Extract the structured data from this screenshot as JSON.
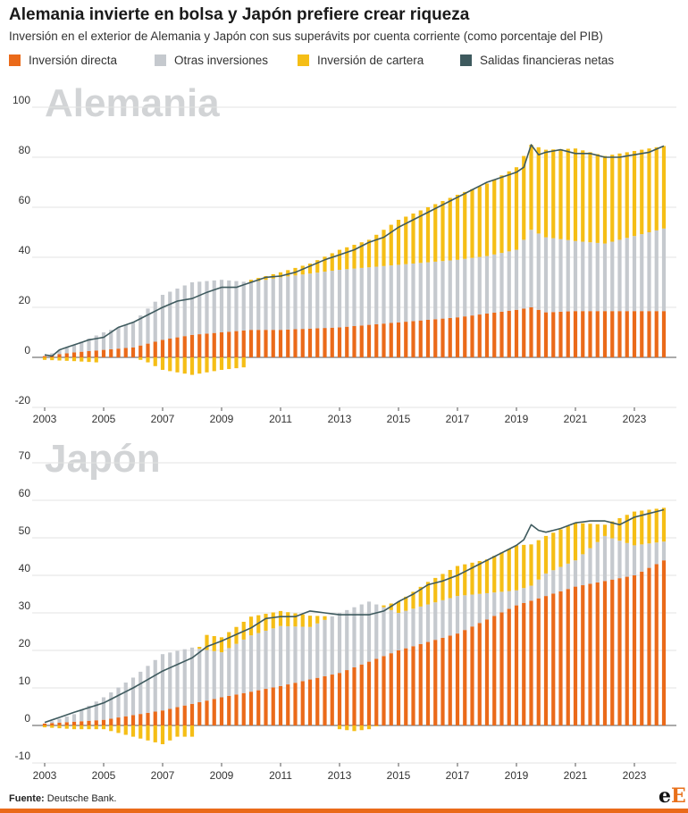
{
  "title": "Alemania invierte en bolsa y Japón prefiere crear riqueza",
  "subtitle": "Inversión en el exterior de Alemania y Japón con sus superávits por cuenta corriente (como porcentaje del PIB)",
  "legend": [
    {
      "label": "Inversión directa",
      "color": "#ea6a1a"
    },
    {
      "label": "Otras inversiones",
      "color": "#c5c9ce"
    },
    {
      "label": "Inversión de cartera",
      "color": "#f5be16"
    },
    {
      "label": "Salidas financieras netas",
      "color": "#3e5a5e"
    }
  ],
  "source_label": "Fuente:",
  "source_text": " Deutsche Bank.",
  "logo": {
    "part1": "e",
    "part2": "E"
  },
  "chart_data": [
    {
      "type": "bar",
      "stacked": true,
      "panel_title": "Alemania",
      "x_start": 2003.0,
      "x_step": 0.25,
      "n": 85,
      "xticks": [
        2003,
        2005,
        2007,
        2009,
        2011,
        2013,
        2015,
        2017,
        2019,
        2021,
        2023
      ],
      "yticks": [
        -20,
        0,
        20,
        40,
        60,
        80,
        100
      ],
      "ylim": [
        -20,
        100
      ],
      "grid": true,
      "series": [
        {
          "name": "Inversión directa",
          "key": "directa",
          "color": "#ea6a1a",
          "keypoints": [
            [
              2003.0,
              0.5
            ],
            [
              2004.0,
              2
            ],
            [
              2005.0,
              3
            ],
            [
              2006.0,
              4
            ],
            [
              2007.0,
              7
            ],
            [
              2008.0,
              9
            ],
            [
              2009.0,
              10
            ],
            [
              2010.0,
              11
            ],
            [
              2011.0,
              11
            ],
            [
              2012.0,
              11.5
            ],
            [
              2013.0,
              12
            ],
            [
              2014.0,
              13
            ],
            [
              2015.0,
              14
            ],
            [
              2016.0,
              15
            ],
            [
              2017.0,
              16
            ],
            [
              2018.0,
              17.5
            ],
            [
              2019.0,
              19
            ],
            [
              2019.5,
              20
            ],
            [
              2020.0,
              18
            ],
            [
              2021.0,
              18.5
            ],
            [
              2022.0,
              18.5
            ],
            [
              2024.0,
              18.5
            ]
          ]
        },
        {
          "name": "Otras inversiones",
          "key": "otras",
          "color": "#c5c9ce",
          "keypoints": [
            [
              2003.0,
              0
            ],
            [
              2004.0,
              3
            ],
            [
              2005.0,
              7
            ],
            [
              2006.0,
              10
            ],
            [
              2007.0,
              18
            ],
            [
              2008.0,
              21
            ],
            [
              2009.0,
              21
            ],
            [
              2010.0,
              19
            ],
            [
              2011.0,
              21
            ],
            [
              2012.0,
              22
            ],
            [
              2013.0,
              23
            ],
            [
              2014.0,
              23
            ],
            [
              2015.0,
              23
            ],
            [
              2016.0,
              23
            ],
            [
              2017.0,
              23
            ],
            [
              2018.0,
              23
            ],
            [
              2019.0,
              24
            ],
            [
              2019.5,
              31
            ],
            [
              2020.0,
              30
            ],
            [
              2021.0,
              28
            ],
            [
              2022.0,
              27
            ],
            [
              2023.0,
              30
            ],
            [
              2024.0,
              33
            ]
          ]
        },
        {
          "name": "Inversión de cartera",
          "key": "cartera",
          "color": "#f5be16",
          "keypoints": [
            [
              2003.0,
              -1
            ],
            [
              2004.0,
              -1.5
            ],
            [
              2004.75,
              -2
            ],
            [
              2005.0,
              0
            ],
            [
              2006.0,
              0
            ],
            [
              2006.5,
              -2
            ],
            [
              2007.0,
              -5
            ],
            [
              2008.0,
              -7
            ],
            [
              2009.0,
              -5
            ],
            [
              2009.75,
              -4
            ],
            [
              2010.0,
              1
            ],
            [
              2011.0,
              2
            ],
            [
              2012.0,
              4
            ],
            [
              2013.0,
              8
            ],
            [
              2014.0,
              11
            ],
            [
              2015.0,
              18
            ],
            [
              2016.0,
              22
            ],
            [
              2017.0,
              26
            ],
            [
              2018.0,
              29
            ],
            [
              2019.0,
              33
            ],
            [
              2019.5,
              34
            ],
            [
              2020.0,
              35
            ],
            [
              2021.0,
              37
            ],
            [
              2022.0,
              35
            ],
            [
              2023.0,
              34
            ],
            [
              2024.0,
              33
            ]
          ]
        },
        {
          "name": "Salidas financieras netas",
          "key": "netas",
          "color": "#3e5a5e",
          "type": "line",
          "keypoints": [
            [
              2003.0,
              1
            ],
            [
              2003.25,
              0.5
            ],
            [
              2003.5,
              3
            ],
            [
              2004.0,
              5
            ],
            [
              2004.5,
              7
            ],
            [
              2005.0,
              8
            ],
            [
              2005.5,
              12
            ],
            [
              2006.0,
              14
            ],
            [
              2006.5,
              17
            ],
            [
              2007.0,
              20
            ],
            [
              2007.5,
              22.5
            ],
            [
              2008.0,
              23.5
            ],
            [
              2008.5,
              26
            ],
            [
              2009.0,
              28
            ],
            [
              2009.5,
              28
            ],
            [
              2009.75,
              29
            ],
            [
              2010.0,
              30
            ],
            [
              2010.5,
              32
            ],
            [
              2011.0,
              32.5
            ],
            [
              2011.5,
              34
            ],
            [
              2012.0,
              36.5
            ],
            [
              2012.5,
              39
            ],
            [
              2013.0,
              41
            ],
            [
              2013.5,
              43
            ],
            [
              2014.0,
              46
            ],
            [
              2014.5,
              48
            ],
            [
              2015.0,
              52
            ],
            [
              2015.5,
              55
            ],
            [
              2016.0,
              58
            ],
            [
              2016.5,
              61
            ],
            [
              2017.0,
              64
            ],
            [
              2017.5,
              67
            ],
            [
              2018.0,
              70
            ],
            [
              2018.5,
              72
            ],
            [
              2019.0,
              74
            ],
            [
              2019.25,
              76
            ],
            [
              2019.5,
              85
            ],
            [
              2019.75,
              81
            ],
            [
              2020.0,
              82
            ],
            [
              2020.5,
              83
            ],
            [
              2021.0,
              81.5
            ],
            [
              2021.5,
              81.5
            ],
            [
              2022.0,
              80
            ],
            [
              2022.5,
              80
            ],
            [
              2023.0,
              81
            ],
            [
              2023.5,
              82
            ],
            [
              2024.0,
              84.5
            ]
          ]
        }
      ]
    },
    {
      "type": "bar",
      "stacked": true,
      "panel_title": "Japón",
      "x_start": 2003.0,
      "x_step": 0.25,
      "n": 85,
      "xticks": [
        2003,
        2005,
        2007,
        2009,
        2011,
        2013,
        2015,
        2017,
        2019,
        2021,
        2023
      ],
      "yticks": [
        -10,
        0,
        10,
        20,
        30,
        40,
        50,
        60,
        70
      ],
      "ylim": [
        -10,
        70
      ],
      "grid": true,
      "series": [
        {
          "name": "Inversión directa",
          "key": "directa",
          "color": "#ea6a1a",
          "keypoints": [
            [
              2003.0,
              0.5
            ],
            [
              2005.0,
              1.5
            ],
            [
              2007.0,
              4
            ],
            [
              2009.0,
              7.5
            ],
            [
              2011.0,
              10.5
            ],
            [
              2013.0,
              14
            ],
            [
              2015.0,
              20
            ],
            [
              2017.0,
              24.5
            ],
            [
              2019.0,
              32
            ],
            [
              2021.0,
              37
            ],
            [
              2023.0,
              40
            ],
            [
              2024.0,
              44
            ]
          ]
        },
        {
          "name": "Otras inversiones",
          "key": "otras",
          "color": "#c5c9ce",
          "keypoints": [
            [
              2003.0,
              0
            ],
            [
              2004.0,
              2
            ],
            [
              2005.0,
              6
            ],
            [
              2006.0,
              10
            ],
            [
              2007.0,
              15
            ],
            [
              2008.0,
              15
            ],
            [
              2009.0,
              12
            ],
            [
              2010.0,
              15
            ],
            [
              2011.0,
              16
            ],
            [
              2012.0,
              14
            ],
            [
              2013.0,
              16
            ],
            [
              2014.0,
              16
            ],
            [
              2015.0,
              10
            ],
            [
              2016.0,
              10
            ],
            [
              2017.0,
              10
            ],
            [
              2018.0,
              7
            ],
            [
              2019.0,
              4
            ],
            [
              2019.5,
              4
            ],
            [
              2020.0,
              6
            ],
            [
              2021.0,
              7
            ],
            [
              2022.0,
              12
            ],
            [
              2023.0,
              8
            ],
            [
              2024.0,
              5
            ]
          ]
        },
        {
          "name": "Inversión de cartera",
          "key": "cartera",
          "color": "#f5be16",
          "keypoints": [
            [
              2003.0,
              -0.5
            ],
            [
              2004.0,
              -1
            ],
            [
              2005.0,
              -1
            ],
            [
              2005.5,
              -2
            ],
            [
              2006.0,
              -3
            ],
            [
              2006.5,
              -4
            ],
            [
              2007.0,
              -5
            ],
            [
              2007.5,
              -3
            ],
            [
              2008.0,
              -3
            ],
            [
              2008.5,
              4
            ],
            [
              2009.0,
              4
            ],
            [
              2010.0,
              5
            ],
            [
              2011.0,
              4
            ],
            [
              2012.0,
              3
            ],
            [
              2012.5,
              1
            ],
            [
              2013.0,
              -1
            ],
            [
              2013.5,
              -1.5
            ],
            [
              2014.0,
              -1
            ],
            [
              2014.5,
              0.5
            ],
            [
              2015.0,
              3
            ],
            [
              2016.0,
              6
            ],
            [
              2017.0,
              8
            ],
            [
              2018.0,
              9
            ],
            [
              2019.0,
              12
            ],
            [
              2020.0,
              10
            ],
            [
              2021.0,
              10
            ],
            [
              2022.0,
              3
            ],
            [
              2023.0,
              9
            ],
            [
              2024.0,
              9
            ]
          ]
        },
        {
          "name": "Salidas financieras netas",
          "key": "netas",
          "color": "#3e5a5e",
          "type": "line",
          "keypoints": [
            [
              2003.0,
              0.8
            ],
            [
              2004.0,
              3.5
            ],
            [
              2005.0,
              6
            ],
            [
              2006.0,
              10
            ],
            [
              2007.0,
              14.5
            ],
            [
              2008.0,
              18
            ],
            [
              2008.5,
              21
            ],
            [
              2009.0,
              22.5
            ],
            [
              2010.0,
              26
            ],
            [
              2010.5,
              28.5
            ],
            [
              2011.0,
              29
            ],
            [
              2011.5,
              29
            ],
            [
              2012.0,
              30.5
            ],
            [
              2012.5,
              30
            ],
            [
              2013.0,
              29.5
            ],
            [
              2013.5,
              29.5
            ],
            [
              2014.0,
              29.5
            ],
            [
              2014.5,
              30.5
            ],
            [
              2015.0,
              33
            ],
            [
              2015.5,
              35
            ],
            [
              2016.0,
              37.5
            ],
            [
              2016.5,
              38.5
            ],
            [
              2017.0,
              40
            ],
            [
              2017.5,
              42
            ],
            [
              2018.0,
              44
            ],
            [
              2018.5,
              46
            ],
            [
              2019.0,
              48
            ],
            [
              2019.25,
              49.5
            ],
            [
              2019.5,
              53.5
            ],
            [
              2019.75,
              52
            ],
            [
              2020.0,
              51.5
            ],
            [
              2020.5,
              52.5
            ],
            [
              2021.0,
              54
            ],
            [
              2021.5,
              54.5
            ],
            [
              2022.0,
              54.5
            ],
            [
              2022.5,
              53.5
            ],
            [
              2023.0,
              55.5
            ],
            [
              2023.5,
              56.5
            ],
            [
              2024.0,
              57.5
            ]
          ]
        }
      ]
    }
  ]
}
